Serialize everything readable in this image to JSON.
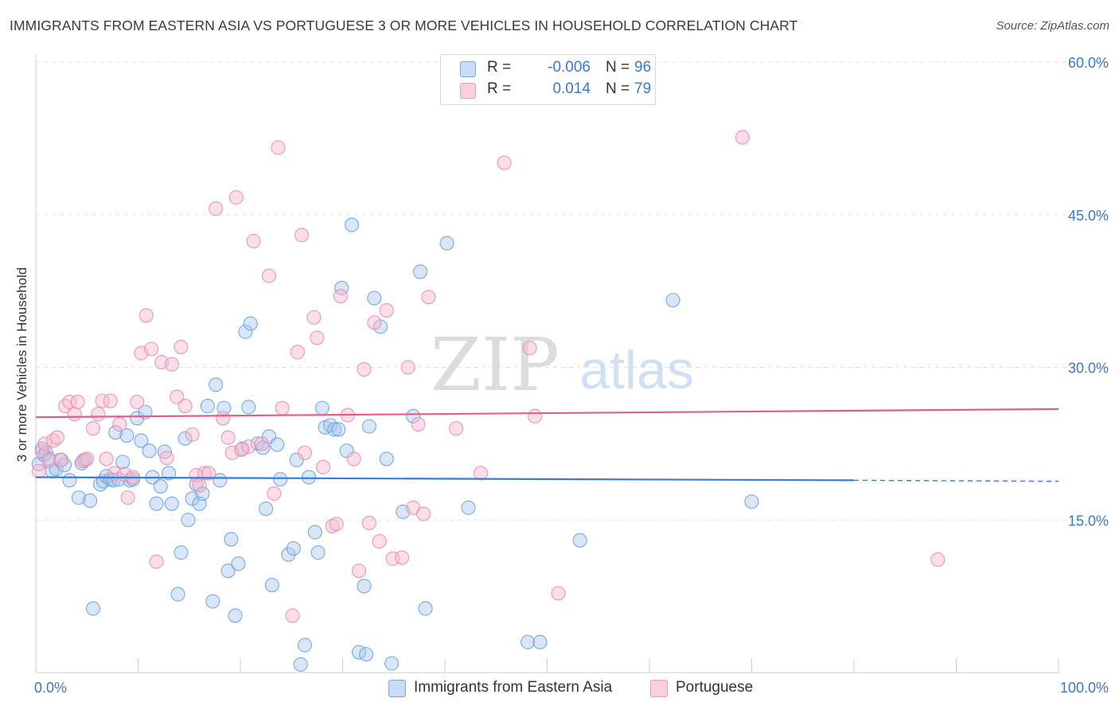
{
  "title": "IMMIGRANTS FROM EASTERN ASIA VS PORTUGUESE 3 OR MORE VEHICLES IN HOUSEHOLD CORRELATION CHART",
  "source": "Source: ZipAtlas.com",
  "watermark": {
    "zip": "ZIP",
    "atlas": "atlas"
  },
  "legend": {
    "rows": [
      {
        "r_label": "R =",
        "r_value": "-0.006",
        "n_label": "N =",
        "n_value": "96",
        "color": "#a8c8f0"
      },
      {
        "r_label": "R =",
        "r_value": "0.014",
        "n_label": "N =",
        "n_value": "79",
        "color": "#f6b8cc"
      }
    ]
  },
  "bottom_legend": [
    {
      "label": "Immigrants from Eastern Asia",
      "color": "#a8c8f0"
    },
    {
      "label": "Portuguese",
      "color": "#f6b8cc"
    }
  ],
  "chart_data": {
    "type": "scatter",
    "title": "IMMIGRANTS FROM EASTERN ASIA VS PORTUGUESE 3 OR MORE VEHICLES IN HOUSEHOLD CORRELATION CHART",
    "xlabel": "",
    "ylabel": "3 or more Vehicles in Household",
    "xlim": [
      0,
      100
    ],
    "ylim": [
      0,
      60
    ],
    "x_tick_labels": [
      "0.0%",
      "100.0%"
    ],
    "y_ticks": [
      15,
      30,
      45,
      60
    ],
    "y_tick_labels": [
      "15.0%",
      "30.0%",
      "45.0%",
      "60.0%"
    ],
    "grid": true,
    "series": [
      {
        "name": "Immigrants from Eastern Asia",
        "color": "#6aa2e0",
        "fill": "#a8c8f0",
        "trend": {
          "x": [
            0,
            80
          ],
          "y": [
            19.2,
            18.9
          ],
          "dashed_to": [
            100,
            18.8
          ],
          "color": "#3a7bd5"
        },
        "points": [
          [
            0.3,
            20.5
          ],
          [
            0.6,
            22.0
          ],
          [
            0.8,
            21.4
          ],
          [
            1.0,
            21.6
          ],
          [
            1.3,
            21.0
          ],
          [
            1.6,
            19.8
          ],
          [
            2.0,
            20.0
          ],
          [
            2.4,
            20.9
          ],
          [
            2.8,
            20.4
          ],
          [
            3.3,
            18.9
          ],
          [
            4.2,
            17.2
          ],
          [
            4.5,
            20.6
          ],
          [
            4.8,
            20.9
          ],
          [
            5.3,
            16.9
          ],
          [
            5.6,
            6.3
          ],
          [
            6.3,
            18.5
          ],
          [
            6.6,
            18.8
          ],
          [
            6.9,
            19.3
          ],
          [
            7.3,
            19.0
          ],
          [
            7.6,
            18.9
          ],
          [
            7.8,
            23.6
          ],
          [
            8.1,
            19.0
          ],
          [
            8.5,
            20.7
          ],
          [
            8.9,
            23.3
          ],
          [
            9.2,
            18.9
          ],
          [
            9.5,
            19.0
          ],
          [
            9.9,
            25.0
          ],
          [
            10.3,
            22.8
          ],
          [
            10.7,
            25.6
          ],
          [
            11.1,
            21.8
          ],
          [
            11.4,
            19.2
          ],
          [
            11.8,
            16.6
          ],
          [
            12.2,
            18.3
          ],
          [
            12.6,
            21.7
          ],
          [
            13.0,
            19.6
          ],
          [
            13.3,
            16.6
          ],
          [
            13.9,
            7.7
          ],
          [
            14.2,
            11.8
          ],
          [
            14.6,
            23.0
          ],
          [
            14.9,
            15.0
          ],
          [
            15.3,
            17.1
          ],
          [
            15.7,
            18.5
          ],
          [
            16.0,
            16.6
          ],
          [
            16.3,
            17.6
          ],
          [
            16.8,
            26.2
          ],
          [
            17.3,
            7.0
          ],
          [
            17.6,
            28.3
          ],
          [
            18.0,
            18.9
          ],
          [
            18.4,
            26.0
          ],
          [
            18.8,
            10.0
          ],
          [
            19.1,
            13.1
          ],
          [
            19.5,
            5.6
          ],
          [
            19.8,
            10.7
          ],
          [
            20.2,
            22.0
          ],
          [
            20.5,
            33.5
          ],
          [
            20.8,
            26.1
          ],
          [
            21.0,
            34.3
          ],
          [
            21.7,
            22.5
          ],
          [
            22.2,
            22.1
          ],
          [
            22.5,
            16.1
          ],
          [
            22.8,
            23.2
          ],
          [
            23.1,
            8.6
          ],
          [
            23.6,
            22.4
          ],
          [
            23.9,
            19.0
          ],
          [
            24.7,
            11.6
          ],
          [
            25.2,
            12.2
          ],
          [
            25.5,
            20.9
          ],
          [
            25.9,
            0.8
          ],
          [
            26.3,
            2.7
          ],
          [
            26.7,
            19.2
          ],
          [
            27.3,
            13.8
          ],
          [
            27.6,
            11.8
          ],
          [
            28.0,
            26.0
          ],
          [
            28.3,
            24.1
          ],
          [
            28.8,
            24.3
          ],
          [
            29.2,
            23.9
          ],
          [
            29.6,
            23.9
          ],
          [
            29.9,
            37.8
          ],
          [
            30.4,
            21.8
          ],
          [
            30.9,
            44.0
          ],
          [
            31.6,
            2.0
          ],
          [
            32.1,
            8.5
          ],
          [
            32.3,
            1.8
          ],
          [
            32.6,
            24.2
          ],
          [
            33.1,
            36.8
          ],
          [
            33.7,
            34.0
          ],
          [
            34.3,
            21.0
          ],
          [
            34.8,
            0.9
          ],
          [
            35.9,
            15.8
          ],
          [
            36.9,
            25.2
          ],
          [
            37.6,
            39.4
          ],
          [
            38.1,
            6.3
          ],
          [
            40.2,
            42.2
          ],
          [
            42.3,
            16.2
          ],
          [
            48.1,
            3.0
          ],
          [
            49.3,
            3.0
          ],
          [
            53.2,
            13.0
          ],
          [
            62.3,
            36.6
          ],
          [
            70.0,
            16.8
          ]
        ]
      },
      {
        "name": "Portuguese",
        "color": "#f08cab",
        "fill": "#f6b8cc",
        "trend": {
          "x": [
            0,
            100
          ],
          "y": [
            25.1,
            25.9
          ],
          "color": "#e0608a"
        },
        "points": [
          [
            0.3,
            19.8
          ],
          [
            0.6,
            21.7
          ],
          [
            0.9,
            22.5
          ],
          [
            1.3,
            20.8
          ],
          [
            1.7,
            22.8
          ],
          [
            2.1,
            23.1
          ],
          [
            2.5,
            20.9
          ],
          [
            2.9,
            26.2
          ],
          [
            3.3,
            26.6
          ],
          [
            3.8,
            25.4
          ],
          [
            4.1,
            26.6
          ],
          [
            4.6,
            20.8
          ],
          [
            5.0,
            21.0
          ],
          [
            5.6,
            24.0
          ],
          [
            6.1,
            25.4
          ],
          [
            6.5,
            26.7
          ],
          [
            6.9,
            21.0
          ],
          [
            7.3,
            26.7
          ],
          [
            7.7,
            19.6
          ],
          [
            8.2,
            24.4
          ],
          [
            8.7,
            19.5
          ],
          [
            9.0,
            17.2
          ],
          [
            9.5,
            19.2
          ],
          [
            9.9,
            26.6
          ],
          [
            10.3,
            31.4
          ],
          [
            10.8,
            35.1
          ],
          [
            11.3,
            31.8
          ],
          [
            11.8,
            10.9
          ],
          [
            12.3,
            30.5
          ],
          [
            12.8,
            21.1
          ],
          [
            13.3,
            30.3
          ],
          [
            13.8,
            27.1
          ],
          [
            14.2,
            32.0
          ],
          [
            14.6,
            26.2
          ],
          [
            15.3,
            23.4
          ],
          [
            15.7,
            19.4
          ],
          [
            16.0,
            18.4
          ],
          [
            16.5,
            19.6
          ],
          [
            16.9,
            19.6
          ],
          [
            17.6,
            45.6
          ],
          [
            18.3,
            25.0
          ],
          [
            18.8,
            23.1
          ],
          [
            19.2,
            21.6
          ],
          [
            19.6,
            46.7
          ],
          [
            20.1,
            21.9
          ],
          [
            20.8,
            22.2
          ],
          [
            21.3,
            42.4
          ],
          [
            22.1,
            22.5
          ],
          [
            22.8,
            39.0
          ],
          [
            23.3,
            17.6
          ],
          [
            23.7,
            51.6
          ],
          [
            24.1,
            26.0
          ],
          [
            25.1,
            5.6
          ],
          [
            25.6,
            31.5
          ],
          [
            26.0,
            43.0
          ],
          [
            26.3,
            21.6
          ],
          [
            27.2,
            34.9
          ],
          [
            27.5,
            32.9
          ],
          [
            28.1,
            20.2
          ],
          [
            29.0,
            14.4
          ],
          [
            29.4,
            14.6
          ],
          [
            29.8,
            37.0
          ],
          [
            30.5,
            25.3
          ],
          [
            31.1,
            21.0
          ],
          [
            31.6,
            10.0
          ],
          [
            32.1,
            29.8
          ],
          [
            32.6,
            14.7
          ],
          [
            33.1,
            34.4
          ],
          [
            33.6,
            12.9
          ],
          [
            34.3,
            35.6
          ],
          [
            34.9,
            11.2
          ],
          [
            35.8,
            11.3
          ],
          [
            36.4,
            30.0
          ],
          [
            36.9,
            16.2
          ],
          [
            37.4,
            24.4
          ],
          [
            37.9,
            15.6
          ],
          [
            38.4,
            36.9
          ],
          [
            41.1,
            24.0
          ],
          [
            43.5,
            19.6
          ],
          [
            45.8,
            50.1
          ],
          [
            48.3,
            31.9
          ],
          [
            48.8,
            25.2
          ],
          [
            51.1,
            7.8
          ],
          [
            69.1,
            52.6
          ],
          [
            88.2,
            11.1
          ]
        ]
      }
    ]
  }
}
